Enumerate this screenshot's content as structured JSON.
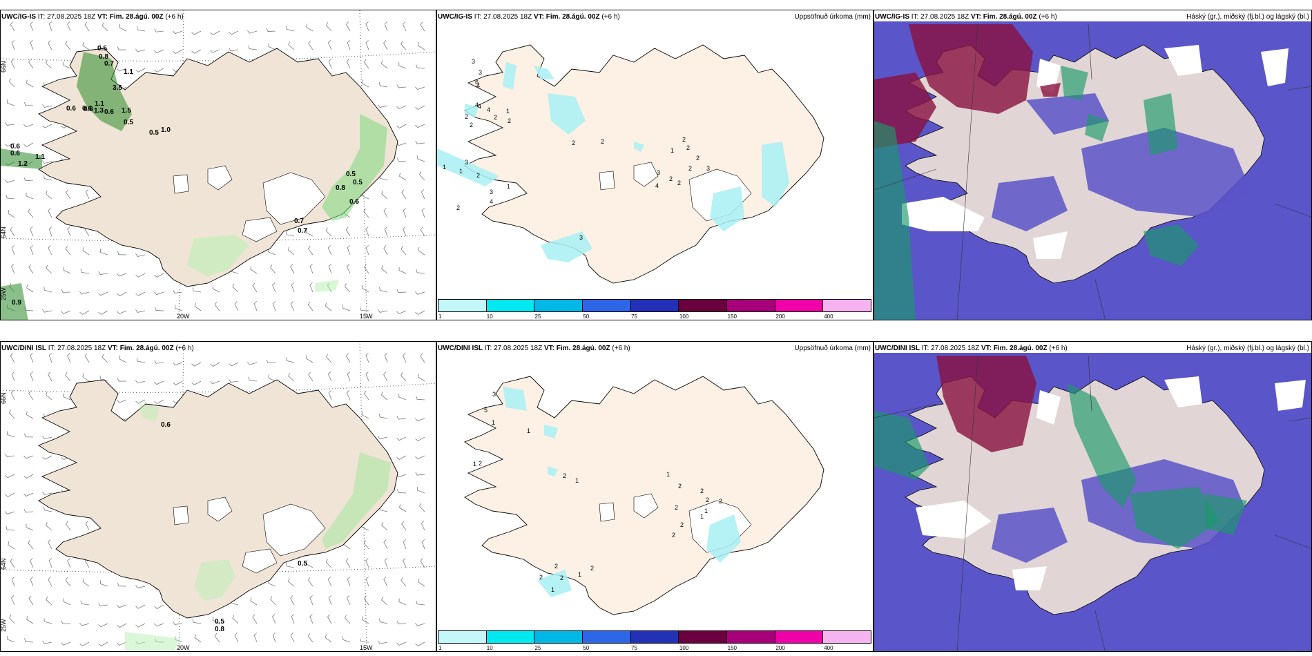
{
  "panels": {
    "top_left": {
      "model": "UWC/IG-IS",
      "it_label": "IT:",
      "it": "27.08.2025 18Z",
      "vt_label": "VT:",
      "vt": "Fim. 28.ágú. 00Z",
      "offset": "(+6 h)"
    },
    "top_mid": {
      "model": "UWC/IG-IS",
      "it_label": "IT:",
      "it": "27.08.2025 18Z",
      "vt_label": "VT:",
      "vt": "Fim. 28.ágú. 00Z",
      "offset": "(+6 h)",
      "right": "Uppsöfnuð úrkoma (mm)"
    },
    "top_right": {
      "model": "UWC/IG-IS",
      "it_label": "IT:",
      "it": "27.08.2025 18Z",
      "vt_label": "VT:",
      "vt": "Fim. 28.ágú. 00Z",
      "offset": "(+6 h)",
      "right": "Háský (gr.), miðský (fj.bl.) og lágský (bl.)"
    },
    "bot_left": {
      "model": "UWC/DINI ISL",
      "it_label": "IT:",
      "it": "27.08.2025 18Z",
      "vt_label": "VT:",
      "vt": "Fim. 28.ágú. 00Z",
      "offset": "(+6 h)"
    },
    "bot_mid": {
      "model": "UWC/DINI ISL",
      "it_label": "IT:",
      "it": "27.08.2025 18Z",
      "vt_label": "VT:",
      "vt": "Fim. 28.ágú. 00Z",
      "offset": "(+6 h)",
      "right": "Uppsöfnuð úrkoma (mm)"
    },
    "bot_right": {
      "model": "UWC/DINI ISL",
      "it_label": "IT:",
      "it": "27.08.2025 18Z",
      "vt_label": "VT:",
      "vt": "Fim. 28.ágú. 00Z",
      "offset": "(+6 h)",
      "right": "Háský (gr.), miðský (fj.bl.) og lágský (bl.)"
    }
  },
  "axes": {
    "lat66": "66N",
    "lat64": "64N",
    "lon25": "25W",
    "lon20": "20W",
    "lon15": "15W"
  },
  "colorbar": {
    "ticks": [
      "1",
      "10",
      "25",
      "50",
      "75",
      "100",
      "150",
      "200",
      "400"
    ],
    "colors": [
      "#c4f7f9",
      "#00e9f0",
      "#00b8e6",
      "#2e66e8",
      "#2330b8",
      "#6a0040",
      "#a8007a",
      "#f000a8",
      "#f5b4f0"
    ]
  },
  "top_left_values": [
    "0.5",
    "0.8",
    "0.7",
    "1.1",
    "3.5",
    "1.1",
    "0.6",
    "1.3",
    "1.5",
    "0.6",
    "0.5",
    "0.6",
    "0.5",
    "1.0",
    "0.6",
    "0.6",
    "1.1",
    "1.2",
    "0.6",
    "0.5",
    "0.8",
    "0.5",
    "0.6",
    "0.7",
    "0.7",
    "0.9"
  ],
  "bot_left_values": [
    "0.6",
    "0.5",
    "0.5",
    "0.8"
  ],
  "top_mid_values": [
    "3",
    "3",
    "6",
    "4",
    "4",
    "4",
    "4",
    "2",
    "1",
    "2",
    "2",
    "2",
    "3",
    "2",
    "1",
    "3",
    "4",
    "1",
    "1",
    "2",
    "2",
    "2",
    "1",
    "2",
    "2",
    "2",
    "2",
    "3",
    "4",
    "3",
    "2",
    "2",
    "3"
  ],
  "bot_mid_values": [
    "3",
    "5",
    "1",
    "1",
    "2",
    "1",
    "2",
    "1",
    "1",
    "2",
    "2",
    "2",
    "2",
    "1",
    "1",
    "2",
    "2",
    "2",
    "2",
    "2",
    "1",
    "2",
    "1",
    "2"
  ]
}
